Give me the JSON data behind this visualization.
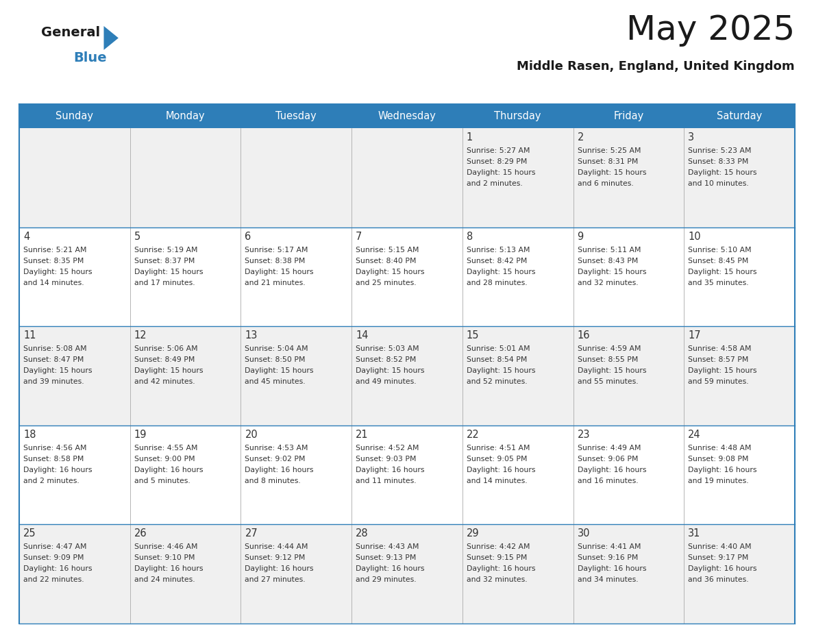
{
  "title": "May 2025",
  "subtitle": "Middle Rasen, England, United Kingdom",
  "days_of_week": [
    "Sunday",
    "Monday",
    "Tuesday",
    "Wednesday",
    "Thursday",
    "Friday",
    "Saturday"
  ],
  "header_bg": "#2E7EB8",
  "header_text": "#FFFFFF",
  "cell_bg_even": "#F0F0F0",
  "cell_bg_odd": "#FFFFFF",
  "day_number_color": "#333333",
  "info_text_color": "#333333",
  "background": "#FFFFFF",
  "border_color": "#2E7EB8",
  "sep_color": "#AAAAAA",
  "calendar_data": [
    [
      null,
      null,
      null,
      null,
      {
        "day": 1,
        "sunrise": "5:27 AM",
        "sunset": "8:29 PM",
        "daylight_line1": "Daylight: 15 hours",
        "daylight_line2": "and 2 minutes."
      },
      {
        "day": 2,
        "sunrise": "5:25 AM",
        "sunset": "8:31 PM",
        "daylight_line1": "Daylight: 15 hours",
        "daylight_line2": "and 6 minutes."
      },
      {
        "day": 3,
        "sunrise": "5:23 AM",
        "sunset": "8:33 PM",
        "daylight_line1": "Daylight: 15 hours",
        "daylight_line2": "and 10 minutes."
      }
    ],
    [
      {
        "day": 4,
        "sunrise": "5:21 AM",
        "sunset": "8:35 PM",
        "daylight_line1": "Daylight: 15 hours",
        "daylight_line2": "and 14 minutes."
      },
      {
        "day": 5,
        "sunrise": "5:19 AM",
        "sunset": "8:37 PM",
        "daylight_line1": "Daylight: 15 hours",
        "daylight_line2": "and 17 minutes."
      },
      {
        "day": 6,
        "sunrise": "5:17 AM",
        "sunset": "8:38 PM",
        "daylight_line1": "Daylight: 15 hours",
        "daylight_line2": "and 21 minutes."
      },
      {
        "day": 7,
        "sunrise": "5:15 AM",
        "sunset": "8:40 PM",
        "daylight_line1": "Daylight: 15 hours",
        "daylight_line2": "and 25 minutes."
      },
      {
        "day": 8,
        "sunrise": "5:13 AM",
        "sunset": "8:42 PM",
        "daylight_line1": "Daylight: 15 hours",
        "daylight_line2": "and 28 minutes."
      },
      {
        "day": 9,
        "sunrise": "5:11 AM",
        "sunset": "8:43 PM",
        "daylight_line1": "Daylight: 15 hours",
        "daylight_line2": "and 32 minutes."
      },
      {
        "day": 10,
        "sunrise": "5:10 AM",
        "sunset": "8:45 PM",
        "daylight_line1": "Daylight: 15 hours",
        "daylight_line2": "and 35 minutes."
      }
    ],
    [
      {
        "day": 11,
        "sunrise": "5:08 AM",
        "sunset": "8:47 PM",
        "daylight_line1": "Daylight: 15 hours",
        "daylight_line2": "and 39 minutes."
      },
      {
        "day": 12,
        "sunrise": "5:06 AM",
        "sunset": "8:49 PM",
        "daylight_line1": "Daylight: 15 hours",
        "daylight_line2": "and 42 minutes."
      },
      {
        "day": 13,
        "sunrise": "5:04 AM",
        "sunset": "8:50 PM",
        "daylight_line1": "Daylight: 15 hours",
        "daylight_line2": "and 45 minutes."
      },
      {
        "day": 14,
        "sunrise": "5:03 AM",
        "sunset": "8:52 PM",
        "daylight_line1": "Daylight: 15 hours",
        "daylight_line2": "and 49 minutes."
      },
      {
        "day": 15,
        "sunrise": "5:01 AM",
        "sunset": "8:54 PM",
        "daylight_line1": "Daylight: 15 hours",
        "daylight_line2": "and 52 minutes."
      },
      {
        "day": 16,
        "sunrise": "4:59 AM",
        "sunset": "8:55 PM",
        "daylight_line1": "Daylight: 15 hours",
        "daylight_line2": "and 55 minutes."
      },
      {
        "day": 17,
        "sunrise": "4:58 AM",
        "sunset": "8:57 PM",
        "daylight_line1": "Daylight: 15 hours",
        "daylight_line2": "and 59 minutes."
      }
    ],
    [
      {
        "day": 18,
        "sunrise": "4:56 AM",
        "sunset": "8:58 PM",
        "daylight_line1": "Daylight: 16 hours",
        "daylight_line2": "and 2 minutes."
      },
      {
        "day": 19,
        "sunrise": "4:55 AM",
        "sunset": "9:00 PM",
        "daylight_line1": "Daylight: 16 hours",
        "daylight_line2": "and 5 minutes."
      },
      {
        "day": 20,
        "sunrise": "4:53 AM",
        "sunset": "9:02 PM",
        "daylight_line1": "Daylight: 16 hours",
        "daylight_line2": "and 8 minutes."
      },
      {
        "day": 21,
        "sunrise": "4:52 AM",
        "sunset": "9:03 PM",
        "daylight_line1": "Daylight: 16 hours",
        "daylight_line2": "and 11 minutes."
      },
      {
        "day": 22,
        "sunrise": "4:51 AM",
        "sunset": "9:05 PM",
        "daylight_line1": "Daylight: 16 hours",
        "daylight_line2": "and 14 minutes."
      },
      {
        "day": 23,
        "sunrise": "4:49 AM",
        "sunset": "9:06 PM",
        "daylight_line1": "Daylight: 16 hours",
        "daylight_line2": "and 16 minutes."
      },
      {
        "day": 24,
        "sunrise": "4:48 AM",
        "sunset": "9:08 PM",
        "daylight_line1": "Daylight: 16 hours",
        "daylight_line2": "and 19 minutes."
      }
    ],
    [
      {
        "day": 25,
        "sunrise": "4:47 AM",
        "sunset": "9:09 PM",
        "daylight_line1": "Daylight: 16 hours",
        "daylight_line2": "and 22 minutes."
      },
      {
        "day": 26,
        "sunrise": "4:46 AM",
        "sunset": "9:10 PM",
        "daylight_line1": "Daylight: 16 hours",
        "daylight_line2": "and 24 minutes."
      },
      {
        "day": 27,
        "sunrise": "4:44 AM",
        "sunset": "9:12 PM",
        "daylight_line1": "Daylight: 16 hours",
        "daylight_line2": "and 27 minutes."
      },
      {
        "day": 28,
        "sunrise": "4:43 AM",
        "sunset": "9:13 PM",
        "daylight_line1": "Daylight: 16 hours",
        "daylight_line2": "and 29 minutes."
      },
      {
        "day": 29,
        "sunrise": "4:42 AM",
        "sunset": "9:15 PM",
        "daylight_line1": "Daylight: 16 hours",
        "daylight_line2": "and 32 minutes."
      },
      {
        "day": 30,
        "sunrise": "4:41 AM",
        "sunset": "9:16 PM",
        "daylight_line1": "Daylight: 16 hours",
        "daylight_line2": "and 34 minutes."
      },
      {
        "day": 31,
        "sunrise": "4:40 AM",
        "sunset": "9:17 PM",
        "daylight_line1": "Daylight: 16 hours",
        "daylight_line2": "and 36 minutes."
      }
    ]
  ]
}
